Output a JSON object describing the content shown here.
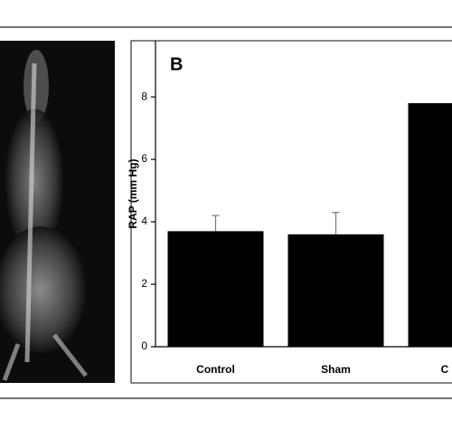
{
  "chart_data": {
    "type": "bar",
    "panel_label": "B",
    "y_label": "RAP (mm Hg)",
    "categories": [
      "Control",
      "Sham",
      "C"
    ],
    "values": [
      3.7,
      3.6,
      7.8
    ],
    "errors": [
      0.5,
      0.7,
      null
    ],
    "color": "#000000",
    "ylim": [
      0,
      9.8
    ],
    "yticks": [
      0,
      2,
      4,
      6,
      8
    ]
  }
}
